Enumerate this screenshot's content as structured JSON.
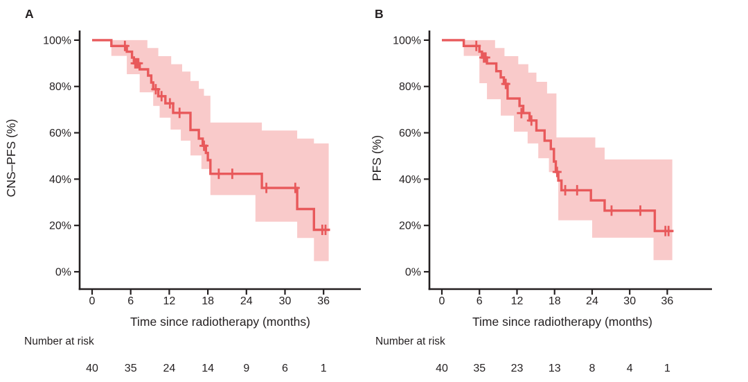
{
  "figure": {
    "background": "#ffffff",
    "text_color": "#231f20",
    "axis_color": "#231f20",
    "line_color": "#e8595b",
    "band_color": "#f9caca"
  },
  "chart_data": [
    {
      "type": "line",
      "subtype": "kaplan-meier-step-with-confidence-band",
      "panel_label": "A",
      "title": "",
      "xlabel": "Time since radiotherapy (months)",
      "ylabel": "CNS–PFS (%)",
      "xticks": [
        0,
        6,
        12,
        18,
        24,
        30,
        36
      ],
      "xticklabels": [
        "0",
        "6",
        "12",
        "18",
        "24",
        "30",
        "36"
      ],
      "yticks": [
        0,
        20,
        40,
        60,
        80,
        100
      ],
      "yticklabels": [
        "0%",
        "20%",
        "40%",
        "60%",
        "80%",
        "100%"
      ],
      "xlim": [
        0,
        42
      ],
      "ylim": [
        0,
        100
      ],
      "grid": false,
      "legend": "none",
      "line_color": "#e8595b",
      "band_color": "#f9caca",
      "survival_steps": [
        [
          0,
          100
        ],
        [
          3,
          97.5
        ],
        [
          5.4,
          95
        ],
        [
          6.2,
          92.5
        ],
        [
          6.5,
          90
        ],
        [
          7.4,
          87.4
        ],
        [
          8.7,
          84.7
        ],
        [
          9.2,
          81.7
        ],
        [
          9.5,
          78.8
        ],
        [
          10.3,
          75.8
        ],
        [
          11.4,
          72.7
        ],
        [
          12.6,
          68.6
        ],
        [
          15.3,
          61.2
        ],
        [
          16.6,
          57.5
        ],
        [
          17.2,
          54.4
        ],
        [
          17.7,
          51.3
        ],
        [
          18.0,
          48.2
        ],
        [
          18.4,
          42.3
        ],
        [
          26.4,
          36.2
        ],
        [
          31.9,
          27.1
        ],
        [
          34.5,
          18.1
        ]
      ],
      "curve_end": 37.0,
      "censor_marks": [
        [
          5.1,
          97.5
        ],
        [
          6.7,
          90
        ],
        [
          6.95,
          90
        ],
        [
          7.2,
          90
        ],
        [
          9.9,
          78.8
        ],
        [
          10.8,
          75.8
        ],
        [
          12.1,
          72.7
        ],
        [
          13.6,
          68.6
        ],
        [
          17.4,
          54.4
        ],
        [
          19.7,
          42.3
        ],
        [
          21.8,
          42.3
        ],
        [
          27.1,
          36.2
        ],
        [
          31.6,
          36.2
        ],
        [
          35.8,
          18.1
        ],
        [
          36.3,
          18.1
        ]
      ],
      "ci_lower": [
        [
          3,
          93.2
        ],
        [
          5.4,
          85.3
        ],
        [
          7.4,
          77.5
        ],
        [
          9.5,
          71.6
        ],
        [
          10.5,
          66.5
        ],
        [
          12.2,
          61.4
        ],
        [
          13.8,
          56.6
        ],
        [
          15.3,
          50.2
        ],
        [
          17.0,
          44.4
        ],
        [
          18.4,
          33.1
        ],
        [
          25.4,
          21.6
        ],
        [
          31.9,
          14.6
        ],
        [
          34.5,
          4.6
        ]
      ],
      "ci_upper": [
        [
          3,
          100
        ],
        [
          8.6,
          96.6
        ],
        [
          10.3,
          93.1
        ],
        [
          12.3,
          89.6
        ],
        [
          14.0,
          86.4
        ],
        [
          15.3,
          82.4
        ],
        [
          16.6,
          79.0
        ],
        [
          17.4,
          76.0
        ],
        [
          18.4,
          64.4
        ],
        [
          26.4,
          61.0
        ],
        [
          31.9,
          57.5
        ],
        [
          34.5,
          55.4
        ]
      ],
      "band_end": 36.8,
      "number_at_risk": {
        "label": "Number at risk",
        "times": [
          0,
          6,
          12,
          18,
          24,
          30,
          36
        ],
        "values": [
          40,
          35,
          24,
          14,
          9,
          6,
          1
        ]
      }
    },
    {
      "type": "line",
      "subtype": "kaplan-meier-step-with-confidence-band",
      "panel_label": "B",
      "title": "",
      "xlabel": "Time since radiotherapy (months)",
      "ylabel": "PFS (%)",
      "xticks": [
        0,
        6,
        12,
        18,
        24,
        30,
        36
      ],
      "xticklabels": [
        "0",
        "6",
        "12",
        "18",
        "24",
        "30",
        "36"
      ],
      "yticks": [
        0,
        20,
        40,
        60,
        80,
        100
      ],
      "yticklabels": [
        "0%",
        "20%",
        "40%",
        "60%",
        "80%",
        "100%"
      ],
      "xlim": [
        0,
        42
      ],
      "ylim": [
        0,
        100
      ],
      "grid": false,
      "legend": "none",
      "line_color": "#e8595b",
      "band_color": "#f9caca",
      "survival_steps": [
        [
          0,
          100
        ],
        [
          3.5,
          97.5
        ],
        [
          6.0,
          95
        ],
        [
          6.4,
          92.5
        ],
        [
          7.2,
          89.9
        ],
        [
          8.7,
          86.6
        ],
        [
          9.4,
          83.9
        ],
        [
          9.9,
          81.1
        ],
        [
          10.5,
          74.8
        ],
        [
          12.4,
          71.6
        ],
        [
          13.0,
          68.5
        ],
        [
          14.0,
          65.3
        ],
        [
          15.1,
          61.0
        ],
        [
          16.4,
          56.6
        ],
        [
          17.4,
          53.0
        ],
        [
          17.9,
          47.6
        ],
        [
          18.2,
          43.1
        ],
        [
          18.6,
          39.4
        ],
        [
          19.1,
          35.2
        ],
        [
          23.8,
          30.8
        ],
        [
          26.0,
          26.4
        ],
        [
          34.0,
          17.6
        ]
      ],
      "curve_end": 37.0,
      "censor_marks": [
        [
          5.5,
          97.5
        ],
        [
          6.7,
          92.5
        ],
        [
          7.0,
          92.5
        ],
        [
          10.2,
          81.1
        ],
        [
          12.7,
          68.5
        ],
        [
          14.3,
          65.3
        ],
        [
          18.4,
          43.1
        ],
        [
          19.7,
          35.2
        ],
        [
          21.6,
          35.2
        ],
        [
          27.1,
          26.4
        ],
        [
          31.7,
          26.4
        ],
        [
          35.7,
          17.6
        ],
        [
          36.2,
          17.6
        ]
      ],
      "ci_lower": [
        [
          3.5,
          93.2
        ],
        [
          6.0,
          81.4
        ],
        [
          7.2,
          74.5
        ],
        [
          9.4,
          67.4
        ],
        [
          11.5,
          60.5
        ],
        [
          13.7,
          55.4
        ],
        [
          15.4,
          49.0
        ],
        [
          17.1,
          43.0
        ],
        [
          18.6,
          22.2
        ],
        [
          24.0,
          14.7
        ],
        [
          33.8,
          5.0
        ]
      ],
      "ci_upper": [
        [
          3.5,
          100
        ],
        [
          8.5,
          96.6
        ],
        [
          10.0,
          93.1
        ],
        [
          12.2,
          89.6
        ],
        [
          13.8,
          86.0
        ],
        [
          15.1,
          82.0
        ],
        [
          16.8,
          77.0
        ],
        [
          18.3,
          58.0
        ],
        [
          24.5,
          53.6
        ],
        [
          26.0,
          48.5
        ]
      ],
      "band_end": 36.8,
      "number_at_risk": {
        "label": "Number at risk",
        "times": [
          0,
          6,
          12,
          18,
          24,
          30,
          36
        ],
        "values": [
          40,
          35,
          23,
          13,
          8,
          4,
          1
        ]
      }
    }
  ]
}
